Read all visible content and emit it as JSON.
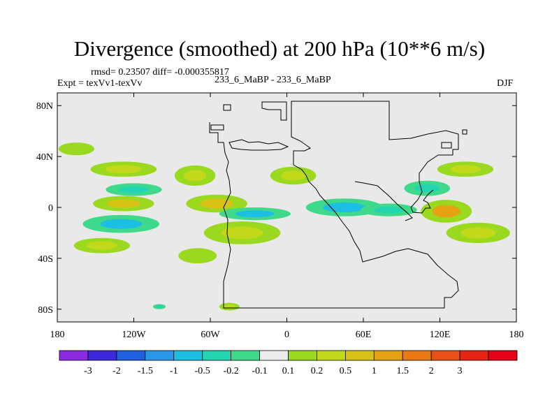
{
  "title": "Divergence (smoothed) at 200 hPa (10**6 m/s)",
  "stats": "rmsd= 0.23507  diff= -0.000355817",
  "experiment": "Expt = texVv1-texVv",
  "run": "233_6_MaBP - 233_6_MaBP",
  "season": "DJF",
  "chart_data": {
    "type": "heatmap",
    "title": "Divergence (smoothed) at 200 hPa (10**6 m/s)",
    "xlabel": "",
    "ylabel": "",
    "xlim": [
      -180,
      180
    ],
    "ylim": [
      -90,
      90
    ],
    "x_ticks": [
      {
        "value": -180,
        "label": "180"
      },
      {
        "value": -120,
        "label": "120W"
      },
      {
        "value": -60,
        "label": "60W"
      },
      {
        "value": 0,
        "label": "0"
      },
      {
        "value": 60,
        "label": "60E"
      },
      {
        "value": 120,
        "label": "120E"
      },
      {
        "value": 180,
        "label": "180"
      }
    ],
    "y_ticks": [
      {
        "value": 80,
        "label": "80N"
      },
      {
        "value": 40,
        "label": "40N"
      },
      {
        "value": 0,
        "label": "0"
      },
      {
        "value": -40,
        "label": "40S"
      },
      {
        "value": -80,
        "label": "80S"
      }
    ],
    "colorbar": {
      "colors": [
        "#8a2be2",
        "#3c28d8",
        "#1f5fe0",
        "#2b97e8",
        "#1dbee3",
        "#22d4b0",
        "#3ed98a",
        "#ececec",
        "#9bd820",
        "#c2d81a",
        "#d8c218",
        "#e4a214",
        "#ea7814",
        "#e8501a",
        "#e62414",
        "#e6001a"
      ],
      "labels": [
        "-3",
        "-2",
        "-1.5",
        "-1",
        "-0.5",
        "-0.2",
        "-0.1",
        "0.1",
        "0.2",
        "0.5",
        "1",
        "1.5",
        "2",
        "3"
      ],
      "levels": [
        -3,
        -2,
        -1.5,
        -1,
        -0.5,
        -0.2,
        -0.1,
        0.1,
        0.2,
        0.5,
        1,
        1.5,
        2,
        3
      ]
    },
    "features": [
      {
        "name": "north-atlantic-positive",
        "lon": -165,
        "lat": 46,
        "rx": 14,
        "ry": 5,
        "value": 0.2
      },
      {
        "name": "pacific-north-positive",
        "lon": -128,
        "lat": 30,
        "rx": 26,
        "ry": 6,
        "value": 0.3
      },
      {
        "name": "pacific-north-negative",
        "lon": -120,
        "lat": 14,
        "rx": 22,
        "ry": 5,
        "value": -0.3
      },
      {
        "name": "pacific-positive",
        "lon": -128,
        "lat": 3,
        "rx": 24,
        "ry": 6,
        "value": 0.6
      },
      {
        "name": "pacific-negative",
        "lon": -130,
        "lat": -13,
        "rx": 30,
        "ry": 7,
        "value": -0.6
      },
      {
        "name": "pacific-south-positive",
        "lon": -145,
        "lat": -30,
        "rx": 22,
        "ry": 6,
        "value": 0.3
      },
      {
        "name": "americas-north-positive",
        "lon": -72,
        "lat": 25,
        "rx": 16,
        "ry": 8,
        "value": 0.5
      },
      {
        "name": "americas-positive",
        "lon": -55,
        "lat": 3,
        "rx": 24,
        "ry": 7,
        "value": 0.6
      },
      {
        "name": "atlantic-negative",
        "lon": -25,
        "lat": -5,
        "rx": 28,
        "ry": 5,
        "value": -0.6
      },
      {
        "name": "africa-positive",
        "lon": -35,
        "lat": -20,
        "rx": 30,
        "ry": 9,
        "value": 0.3
      },
      {
        "name": "africa-north-positive",
        "lon": 5,
        "lat": 25,
        "rx": 18,
        "ry": 7,
        "value": 0.4
      },
      {
        "name": "africa-negative",
        "lon": 45,
        "lat": 0,
        "rx": 30,
        "ry": 7,
        "value": -0.5
      },
      {
        "name": "indian-ocean-negative",
        "lon": 80,
        "lat": -2,
        "rx": 22,
        "ry": 5,
        "value": -0.3
      },
      {
        "name": "western-pacific-positive",
        "lon": 125,
        "lat": -3,
        "rx": 20,
        "ry": 9,
        "value": 1.2
      },
      {
        "name": "western-pacific-negative",
        "lon": 110,
        "lat": 15,
        "rx": 18,
        "ry": 6,
        "value": -0.4
      },
      {
        "name": "north-pacific-positive",
        "lon": 140,
        "lat": 30,
        "rx": 22,
        "ry": 6,
        "value": 0.3
      },
      {
        "name": "south-pacific-positive",
        "lon": 150,
        "lat": -20,
        "rx": 25,
        "ry": 8,
        "value": 0.4
      },
      {
        "name": "southern-ocean-positive",
        "lon": -70,
        "lat": -38,
        "rx": 15,
        "ry": 6,
        "value": 0.2
      },
      {
        "name": "southern-polar-negative",
        "lon": -100,
        "lat": -78,
        "rx": 5,
        "ry": 2,
        "value": -0.2
      },
      {
        "name": "southern-polar-positive",
        "lon": -45,
        "lat": -78,
        "rx": 8,
        "ry": 3,
        "value": 0.3
      }
    ]
  }
}
